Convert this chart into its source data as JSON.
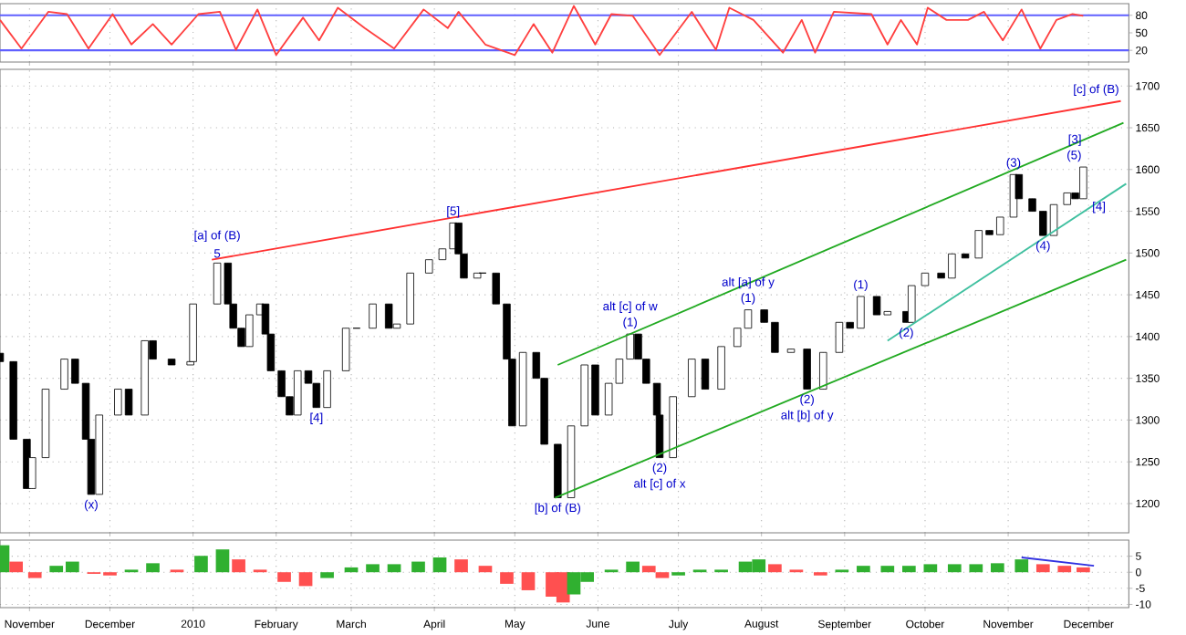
{
  "chart_data": [
    {
      "type": "line",
      "xlim": [
        "2009-10-21",
        "2010-12-16"
      ],
      "ylim": [
        0,
        100
      ],
      "yticks": [
        20,
        50,
        80
      ],
      "grid": "x",
      "tick_labels": "y",
      "xticks": [
        {
          "value": "2009-11-01",
          "label": null
        },
        {
          "value": "2009-12-01",
          "label": null
        },
        {
          "value": "2010-01-01",
          "label": null
        },
        {
          "value": "2010-02-01",
          "label": null
        },
        {
          "value": "2010-03-01",
          "label": null
        },
        {
          "value": "2010-04-01",
          "label": null
        },
        {
          "value": "2010-05-01",
          "label": null
        },
        {
          "value": "2010-06-01",
          "label": null
        },
        {
          "value": "2010-07-01",
          "label": null
        },
        {
          "value": "2010-08-01",
          "label": null
        },
        {
          "value": "2010-09-01",
          "label": null
        },
        {
          "value": "2010-10-01",
          "label": null
        },
        {
          "value": "2010-11-01",
          "label": null
        },
        {
          "value": "2010-12-01",
          "label": null
        }
      ],
      "ref_lines": [
        {
          "axis": "y",
          "value": 80,
          "color": "#6060ff"
        },
        {
          "axis": "y",
          "value": 20,
          "color": "#6060ff"
        }
      ],
      "series": [
        {
          "color": "#ff4040",
          "x": [
            "2009-10-21",
            "2009-10-29",
            "2009-11-08",
            "2009-11-15",
            "2009-11-23",
            "2009-12-02",
            "2009-12-09",
            "2009-12-17",
            "2009-12-24",
            "2010-01-03",
            "2010-01-11",
            "2010-01-17",
            "2010-01-25",
            "2010-02-01",
            "2010-02-11",
            "2010-02-17",
            "2010-02-24",
            "2010-03-06",
            "2010-03-17",
            "2010-03-28",
            "2010-04-06",
            "2010-04-10",
            "2010-04-20",
            "2010-05-01",
            "2010-05-08",
            "2010-05-15",
            "2010-05-23",
            "2010-05-31",
            "2010-06-06",
            "2010-06-14",
            "2010-06-24",
            "2010-07-06",
            "2010-07-15",
            "2010-07-20",
            "2010-07-29",
            "2010-08-09",
            "2010-08-16",
            "2010-08-21",
            "2010-08-28",
            "2010-09-11",
            "2010-09-17",
            "2010-09-22",
            "2010-09-28",
            "2010-10-02",
            "2010-10-09",
            "2010-10-17",
            "2010-10-23",
            "2010-10-30",
            "2010-11-06",
            "2010-11-13",
            "2010-11-19",
            "2010-11-25",
            "2010-11-29"
          ],
          "values": [
            72,
            23,
            86,
            82,
            23,
            82,
            30,
            65,
            30,
            82,
            86,
            21,
            90,
            12,
            76,
            37,
            93,
            58,
            23,
            90,
            58,
            86,
            30,
            12,
            65,
            16,
            96,
            30,
            82,
            79,
            12,
            86,
            21,
            93,
            72,
            16,
            72,
            16,
            86,
            82,
            30,
            72,
            30,
            93,
            72,
            72,
            86,
            37,
            90,
            23,
            72,
            82,
            79
          ]
        }
      ]
    },
    {
      "type": "candlestick",
      "xlim": [
        "2009-10-21",
        "2010-12-16"
      ],
      "ylim": [
        1165,
        1720
      ],
      "yticks": [
        1200,
        1250,
        1300,
        1350,
        1400,
        1450,
        1500,
        1550,
        1600,
        1650,
        1700
      ],
      "grid": true,
      "tick_labels": "y",
      "xticks": [
        {
          "value": "2009-11-01",
          "label": null
        },
        {
          "value": "2009-12-01",
          "label": null
        },
        {
          "value": "2010-01-01",
          "label": null
        },
        {
          "value": "2010-02-01",
          "label": null
        },
        {
          "value": "2010-03-01",
          "label": null
        },
        {
          "value": "2010-04-01",
          "label": null
        },
        {
          "value": "2010-05-01",
          "label": null
        },
        {
          "value": "2010-06-01",
          "label": null
        },
        {
          "value": "2010-07-01",
          "label": null
        },
        {
          "value": "2010-08-01",
          "label": null
        },
        {
          "value": "2010-09-01",
          "label": null
        },
        {
          "value": "2010-10-01",
          "label": null
        },
        {
          "value": "2010-11-01",
          "label": null
        },
        {
          "value": "2010-12-01",
          "label": null
        }
      ],
      "x": [
        "2009-10-21",
        "2009-10-26",
        "2009-10-31",
        "2009-11-02",
        "2009-11-07",
        "2009-11-14",
        "2009-11-18",
        "2009-11-22",
        "2009-11-24",
        "2009-11-27",
        "2009-12-04",
        "2009-12-08",
        "2009-12-14",
        "2009-12-17",
        "2009-12-24",
        "2009-12-31",
        "2010-01-01",
        "2010-01-10",
        "2010-01-14",
        "2010-01-16",
        "2010-01-19",
        "2010-01-22",
        "2010-01-26",
        "2010-01-28",
        "2010-01-30",
        "2010-02-03",
        "2010-02-06",
        "2010-02-09",
        "2010-02-13",
        "2010-02-16",
        "2010-02-20",
        "2010-02-27",
        "2010-03-03",
        "2010-03-09",
        "2010-03-15",
        "2010-03-18",
        "2010-03-23",
        "2010-03-30",
        "2010-04-04",
        "2010-04-08",
        "2010-04-10",
        "2010-04-12",
        "2010-04-17",
        "2010-04-19",
        "2010-04-24",
        "2010-04-28",
        "2010-04-30",
        "2010-05-04",
        "2010-05-09",
        "2010-05-12",
        "2010-05-17",
        "2010-05-22",
        "2010-05-27",
        "2010-05-31",
        "2010-06-05",
        "2010-06-09",
        "2010-06-13",
        "2010-06-16",
        "2010-06-19",
        "2010-06-23",
        "2010-06-24",
        "2010-06-29",
        "2010-07-06",
        "2010-07-11",
        "2010-07-17",
        "2010-07-23",
        "2010-07-27",
        "2010-08-02",
        "2010-08-06",
        "2010-08-12",
        "2010-08-18",
        "2010-08-24",
        "2010-08-30",
        "2010-09-03",
        "2010-09-07",
        "2010-09-13",
        "2010-09-17",
        "2010-09-24",
        "2010-09-26",
        "2010-10-01",
        "2010-10-07",
        "2010-10-11",
        "2010-10-16",
        "2010-10-21",
        "2010-10-25",
        "2010-10-29",
        "2010-11-03",
        "2010-11-05",
        "2010-11-10",
        "2010-11-14",
        "2010-11-18",
        "2010-11-23",
        "2010-11-26",
        "2010-11-29"
      ],
      "ohlc": [
        [
          1380,
          1380,
          1370,
          1370
        ],
        [
          1370,
          1370,
          1277,
          1277
        ],
        [
          1277,
          1277,
          1218,
          1218
        ],
        [
          1218,
          1255,
          1218,
          1255
        ],
        [
          1255,
          1337,
          1255,
          1337
        ],
        [
          1337,
          1373,
          1337,
          1373
        ],
        [
          1373,
          1373,
          1344,
          1344
        ],
        [
          1344,
          1344,
          1277,
          1277
        ],
        [
          1277,
          1277,
          1211,
          1211
        ],
        [
          1211,
          1306,
          1211,
          1306
        ],
        [
          1306,
          1337,
          1306,
          1337
        ],
        [
          1337,
          1337,
          1306,
          1306
        ],
        [
          1306,
          1395,
          1306,
          1395
        ],
        [
          1395,
          1395,
          1373,
          1373
        ],
        [
          1373,
          1373,
          1366,
          1366
        ],
        [
          1366,
          1370,
          1366,
          1370
        ],
        [
          1370,
          1439,
          1370,
          1439
        ],
        [
          1439,
          1488,
          1439,
          1488
        ],
        [
          1488,
          1488,
          1439,
          1439
        ],
        [
          1439,
          1439,
          1410,
          1410
        ],
        [
          1410,
          1410,
          1388,
          1388
        ],
        [
          1388,
          1426,
          1388,
          1426
        ],
        [
          1426,
          1439,
          1426,
          1439
        ],
        [
          1439,
          1439,
          1403,
          1403
        ],
        [
          1403,
          1403,
          1359,
          1359
        ],
        [
          1359,
          1359,
          1328,
          1328
        ],
        [
          1328,
          1328,
          1306,
          1306
        ],
        [
          1306,
          1359,
          1306,
          1359
        ],
        [
          1359,
          1359,
          1344,
          1344
        ],
        [
          1344,
          1344,
          1315,
          1315
        ],
        [
          1315,
          1359,
          1315,
          1359
        ],
        [
          1359,
          1410,
          1359,
          1410
        ],
        [
          1410,
          1410,
          1410,
          1410
        ],
        [
          1410,
          1439,
          1410,
          1439
        ],
        [
          1439,
          1439,
          1410,
          1410
        ],
        [
          1410,
          1415,
          1410,
          1415
        ],
        [
          1415,
          1476,
          1415,
          1476
        ],
        [
          1476,
          1492,
          1476,
          1492
        ],
        [
          1492,
          1505,
          1492,
          1505
        ],
        [
          1505,
          1536,
          1505,
          1536
        ],
        [
          1536,
          1536,
          1499,
          1499
        ],
        [
          1499,
          1499,
          1470,
          1470
        ],
        [
          1470,
          1476,
          1470,
          1476
        ],
        [
          1476,
          1476,
          1476,
          1476
        ],
        [
          1476,
          1476,
          1439,
          1439
        ],
        [
          1439,
          1439,
          1373,
          1373
        ],
        [
          1373,
          1373,
          1293,
          1293
        ],
        [
          1293,
          1381,
          1293,
          1381
        ],
        [
          1381,
          1381,
          1350,
          1350
        ],
        [
          1350,
          1350,
          1271,
          1271
        ],
        [
          1271,
          1271,
          1207,
          1207
        ],
        [
          1207,
          1293,
          1207,
          1293
        ],
        [
          1293,
          1366,
          1293,
          1366
        ],
        [
          1366,
          1366,
          1306,
          1306
        ],
        [
          1306,
          1344,
          1306,
          1344
        ],
        [
          1344,
          1373,
          1344,
          1373
        ],
        [
          1373,
          1403,
          1373,
          1403
        ],
        [
          1403,
          1403,
          1373,
          1373
        ],
        [
          1373,
          1373,
          1344,
          1344
        ],
        [
          1344,
          1344,
          1306,
          1306
        ],
        [
          1306,
          1306,
          1255,
          1255
        ],
        [
          1255,
          1328,
          1255,
          1328
        ],
        [
          1328,
          1373,
          1328,
          1373
        ],
        [
          1373,
          1373,
          1337,
          1337
        ],
        [
          1337,
          1388,
          1337,
          1388
        ],
        [
          1388,
          1410,
          1388,
          1410
        ],
        [
          1410,
          1432,
          1410,
          1432
        ],
        [
          1432,
          1432,
          1417,
          1417
        ],
        [
          1417,
          1417,
          1381,
          1381
        ],
        [
          1381,
          1385,
          1381,
          1385
        ],
        [
          1385,
          1385,
          1337,
          1337
        ],
        [
          1337,
          1381,
          1337,
          1381
        ],
        [
          1381,
          1417,
          1381,
          1417
        ],
        [
          1417,
          1417,
          1410,
          1410
        ],
        [
          1410,
          1448,
          1410,
          1448
        ],
        [
          1448,
          1448,
          1426,
          1426
        ],
        [
          1426,
          1430,
          1426,
          1430
        ],
        [
          1430,
          1430,
          1417,
          1417
        ],
        [
          1417,
          1461,
          1417,
          1461
        ],
        [
          1461,
          1476,
          1461,
          1476
        ],
        [
          1476,
          1476,
          1470,
          1470
        ],
        [
          1470,
          1499,
          1470,
          1499
        ],
        [
          1499,
          1499,
          1494,
          1494
        ],
        [
          1494,
          1527,
          1494,
          1527
        ],
        [
          1527,
          1527,
          1522,
          1522
        ],
        [
          1522,
          1543,
          1522,
          1543
        ],
        [
          1543,
          1594,
          1543,
          1594
        ],
        [
          1594,
          1594,
          1565,
          1565
        ],
        [
          1565,
          1565,
          1550,
          1550
        ],
        [
          1550,
          1550,
          1521,
          1521
        ],
        [
          1521,
          1558,
          1521,
          1558
        ],
        [
          1558,
          1572,
          1558,
          1572
        ],
        [
          1572,
          1572,
          1565,
          1565
        ],
        [
          1565,
          1603,
          1565,
          1603
        ]
      ],
      "series": [
        {
          "type": "line",
          "color": "#ff3030",
          "x": [
            "2010-01-08",
            "2010-12-13"
          ],
          "values": [
            1492,
            1682
          ]
        },
        {
          "type": "line",
          "color": "#22aa22",
          "x": [
            "2010-05-17",
            "2010-12-14"
          ],
          "values": [
            1366,
            1656
          ]
        },
        {
          "type": "line",
          "color": "#22aa22",
          "x": [
            "2010-05-16",
            "2010-12-15"
          ],
          "values": [
            1207,
            1492
          ]
        },
        {
          "type": "line",
          "color": "#40c0a0",
          "x": [
            "2010-09-17",
            "2010-12-15"
          ],
          "values": [
            1395,
            1583
          ]
        }
      ],
      "annotations": [
        {
          "text": "5",
          "x": "2010-01-10",
          "y": 1488
        },
        {
          "text": "[a] of (B)",
          "x": "2010-01-10",
          "y": 1488
        },
        {
          "text": "[b] of (B)",
          "x": "2010-05-17",
          "y": 1207
        },
        {
          "text": "[c] of (B)",
          "x": "2010-12-13",
          "y": 1682
        },
        {
          "text": "(1)",
          "x": "2010-06-13",
          "y": 1403
        },
        {
          "text": "alt [c] of w",
          "x": "2010-06-13",
          "y": 1403
        },
        {
          "text": "(1)",
          "x": "2010-07-27",
          "y": 1432
        },
        {
          "text": "alt [a] of y",
          "x": "2010-07-27",
          "y": 1432
        },
        {
          "text": "(2)",
          "x": "2010-08-18",
          "y": 1337
        },
        {
          "text": "alt [b] of y",
          "x": "2010-08-18",
          "y": 1337
        },
        {
          "text": "(2)",
          "x": "2010-06-24",
          "y": 1255
        },
        {
          "text": "alt [c] of x",
          "x": "2010-06-24",
          "y": 1255
        },
        {
          "text": "(x)",
          "x": "2009-11-24",
          "y": 1211
        },
        {
          "text": "[4]",
          "x": "2010-02-16",
          "y": 1315
        },
        {
          "text": "[5]",
          "x": "2010-04-08",
          "y": 1536
        },
        {
          "text": "(1)",
          "x": "2010-09-07",
          "y": 1448
        },
        {
          "text": "(2)",
          "x": "2010-09-24",
          "y": 1417
        },
        {
          "text": "(3)",
          "x": "2010-11-03",
          "y": 1594
        },
        {
          "text": "(4)",
          "x": "2010-11-14",
          "y": 1521
        },
        {
          "text": "(5)",
          "x": "2010-11-29",
          "y": 1603
        },
        {
          "text": "[3]",
          "x": "2010-11-29",
          "y": 1603
        },
        {
          "text": "[4]",
          "x": "2010-12-08",
          "y": 1568
        }
      ]
    },
    {
      "type": "bar",
      "xlim": [
        "2009-10-21",
        "2010-12-16"
      ],
      "ylim": [
        -11,
        10
      ],
      "yticks": [
        -10,
        -5,
        0,
        5
      ],
      "grid": true,
      "xticks": [
        {
          "value": "2009-11-01",
          "label": "November"
        },
        {
          "value": "2009-12-01",
          "label": "December"
        },
        {
          "value": "2010-01-01",
          "label": "2010"
        },
        {
          "value": "2010-02-01",
          "label": "February"
        },
        {
          "value": "2010-03-01",
          "label": "March"
        },
        {
          "value": "2010-04-01",
          "label": "April"
        },
        {
          "value": "2010-05-01",
          "label": "May"
        },
        {
          "value": "2010-06-01",
          "label": "June"
        },
        {
          "value": "2010-07-01",
          "label": "July"
        },
        {
          "value": "2010-08-01",
          "label": "August"
        },
        {
          "value": "2010-09-01",
          "label": "September"
        },
        {
          "value": "2010-10-01",
          "label": "October"
        },
        {
          "value": "2010-11-01",
          "label": "November"
        },
        {
          "value": "2010-12-01",
          "label": "December"
        }
      ],
      "series": [
        {
          "type": "bar",
          "x": [
            "2009-10-22",
            "2009-10-27",
            "2009-11-03",
            "2009-11-11",
            "2009-11-17",
            "2009-11-25",
            "2009-12-01",
            "2009-12-09",
            "2009-12-17",
            "2009-12-26",
            "2010-01-04",
            "2010-01-12",
            "2010-01-18",
            "2010-01-26",
            "2010-02-04",
            "2010-02-12",
            "2010-02-20",
            "2010-03-01",
            "2010-03-09",
            "2010-03-17",
            "2010-03-26",
            "2010-04-03",
            "2010-04-11",
            "2010-04-20",
            "2010-04-28",
            "2010-05-06",
            "2010-05-15",
            "2010-05-19",
            "2010-05-23",
            "2010-05-28",
            "2010-06-06",
            "2010-06-14",
            "2010-06-20",
            "2010-06-25",
            "2010-07-01",
            "2010-07-09",
            "2010-07-17",
            "2010-07-26",
            "2010-07-31",
            "2010-08-06",
            "2010-08-14",
            "2010-08-23",
            "2010-08-31",
            "2010-09-08",
            "2010-09-17",
            "2010-09-25",
            "2010-10-03",
            "2010-10-12",
            "2010-10-20",
            "2010-10-28",
            "2010-11-06",
            "2010-11-14",
            "2010-11-22",
            "2010-11-29"
          ],
          "values": [
            8.4,
            3.3,
            -1.8,
            2,
            3.3,
            -0.5,
            -1,
            0.8,
            2.8,
            0.8,
            5.1,
            7.1,
            4,
            0.8,
            -3,
            -4.3,
            -1.8,
            1.5,
            2.5,
            2.5,
            3.3,
            4.6,
            4,
            2,
            -3.6,
            -5.6,
            -7.6,
            -9.4,
            -6.9,
            -3,
            0.8,
            3.3,
            2,
            -1.8,
            -1,
            0.8,
            0.8,
            3.3,
            4,
            2.5,
            0.8,
            -1,
            0.8,
            2,
            2,
            2,
            2.5,
            2.5,
            2.5,
            2.8,
            4,
            2.5,
            2,
            1.5
          ],
          "colors": [
            "#30b030",
            "#ff5050",
            "#ff5050",
            "#30b030",
            "#30b030",
            "#ff5050",
            "#ff5050",
            "#30b030",
            "#30b030",
            "#ff5050",
            "#30b030",
            "#30b030",
            "#ff5050",
            "#ff5050",
            "#ff5050",
            "#ff5050",
            "#30b030",
            "#30b030",
            "#30b030",
            "#30b030",
            "#30b030",
            "#30b030",
            "#ff5050",
            "#ff5050",
            "#ff5050",
            "#ff5050",
            "#ff5050",
            "#ff5050",
            "#30b030",
            "#30b030",
            "#30b030",
            "#30b030",
            "#ff5050",
            "#ff5050",
            "#30b030",
            "#30b030",
            "#30b030",
            "#30b030",
            "#30b030",
            "#ff5050",
            "#ff5050",
            "#ff5050",
            "#30b030",
            "#30b030",
            "#30b030",
            "#30b030",
            "#30b030",
            "#30b030",
            "#30b030",
            "#30b030",
            "#30b030",
            "#ff5050",
            "#ff5050",
            "#ff5050"
          ]
        },
        {
          "type": "line",
          "color": "#3030e0",
          "x": [
            "2010-11-06",
            "2010-12-03"
          ],
          "values": [
            4.6,
            2
          ]
        }
      ]
    }
  ]
}
